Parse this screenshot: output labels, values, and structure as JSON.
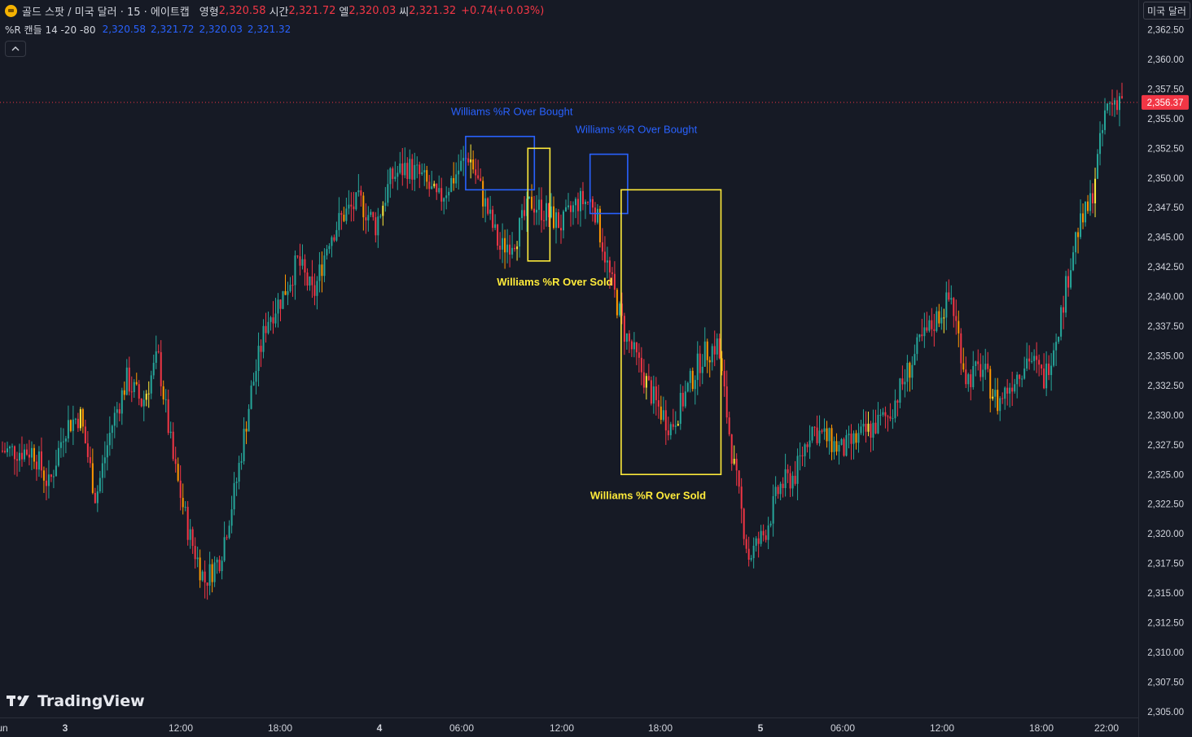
{
  "header": {
    "title": "골드 스팟 / 미국 달러 · 15 · 에이트캡",
    "ohlc": [
      {
        "label": "영형",
        "value": "2,320.58"
      },
      {
        "label": "시간",
        "value": "2,321.72"
      },
      {
        "label": "엘",
        "value": "2,320.03"
      },
      {
        "label": "씨",
        "value": "2,321.32"
      }
    ],
    "change": "+0.74(+0.03%)"
  },
  "indicator": {
    "name": "%R 캔들 14 -20 -80",
    "values": [
      "2,320.58",
      "2,321.72",
      "2,320.03",
      "2,321.32"
    ]
  },
  "currency_button": "미국 달러",
  "collapse_icon": "chevron-up-icon",
  "logo_text": "TradingView",
  "colors": {
    "background": "#161a25",
    "up": "#26a69a",
    "down": "#f23645",
    "orange": "#ff9800",
    "yellow": "#ffeb3b",
    "overbought_box": "#2962ff",
    "oversold_box": "#ffeb3b",
    "axis_text": "#d1d4dc"
  },
  "chart_data": {
    "type": "candlestick",
    "symbol": "골드 스팟 / 미국 달러",
    "interval": "15",
    "ylim": [
      2304,
      2364
    ],
    "y_ticks": [
      "2,362.50",
      "2,360.00",
      "2,357.50",
      "2,355.00",
      "2,352.50",
      "2,350.00",
      "2,347.50",
      "2,345.00",
      "2,342.50",
      "2,340.00",
      "2,337.50",
      "2,335.00",
      "2,332.50",
      "2,330.00",
      "2,327.50",
      "2,325.00",
      "2,322.50",
      "2,320.00",
      "2,317.50",
      "2,315.00",
      "2,312.50",
      "2,310.00",
      "2,307.50",
      "2,305.00"
    ],
    "x_ticks": [
      "Jun",
      "3",
      "12:00",
      "18:00",
      "4",
      "06:00",
      "12:00",
      "18:00",
      "5",
      "06:00",
      "12:00",
      "18:00",
      "22:00"
    ],
    "current_price": {
      "value": 2356.37,
      "label": "2,356.37"
    },
    "close_path": [
      [
        0,
        2327
      ],
      [
        2,
        2327
      ],
      [
        3,
        2324
      ],
      [
        4,
        2329
      ],
      [
        5,
        2330
      ],
      [
        6,
        2323
      ],
      [
        7,
        2329
      ],
      [
        8,
        2333
      ],
      [
        9,
        2331
      ],
      [
        10,
        2335
      ],
      [
        11,
        2326
      ],
      [
        12,
        2320
      ],
      [
        13,
        2316
      ],
      [
        14,
        2318
      ],
      [
        15,
        2324
      ],
      [
        16,
        2332
      ],
      [
        17,
        2338
      ],
      [
        18,
        2340
      ],
      [
        19,
        2343
      ],
      [
        20,
        2340
      ],
      [
        21,
        2345
      ],
      [
        22,
        2347
      ],
      [
        23,
        2348
      ],
      [
        24,
        2346
      ],
      [
        25,
        2350
      ],
      [
        26,
        2351
      ],
      [
        27,
        2350
      ],
      [
        28,
        2348
      ],
      [
        29,
        2350
      ],
      [
        30,
        2352
      ],
      [
        31,
        2348
      ],
      [
        32,
        2344
      ],
      [
        33,
        2345
      ],
      [
        34,
        2348
      ],
      [
        35,
        2347
      ],
      [
        36,
        2346
      ],
      [
        37,
        2348
      ],
      [
        38,
        2348
      ],
      [
        39,
        2342
      ],
      [
        40,
        2337
      ],
      [
        41,
        2334
      ],
      [
        42,
        2331
      ],
      [
        43,
        2329
      ],
      [
        44,
        2332
      ],
      [
        45,
        2335
      ],
      [
        46,
        2336
      ],
      [
        47,
        2326
      ],
      [
        48,
        2318
      ],
      [
        49,
        2320
      ],
      [
        50,
        2324
      ],
      [
        51,
        2325
      ],
      [
        52,
        2329
      ],
      [
        53,
        2328
      ],
      [
        54,
        2327
      ],
      [
        55,
        2328
      ],
      [
        56,
        2329
      ],
      [
        57,
        2330
      ],
      [
        58,
        2333
      ],
      [
        59,
        2336
      ],
      [
        60,
        2338
      ],
      [
        61,
        2340
      ],
      [
        62,
        2333
      ],
      [
        63,
        2334
      ],
      [
        64,
        2331
      ],
      [
        65,
        2333
      ],
      [
        66,
        2335
      ],
      [
        67,
        2333
      ],
      [
        68,
        2338
      ],
      [
        69,
        2345
      ],
      [
        70,
        2348
      ],
      [
        71,
        2356
      ],
      [
        72,
        2357
      ]
    ],
    "annotations": [
      {
        "text": "Williams %R Over Bought",
        "kind": "overbought",
        "from_bar": 30,
        "to_bar": 34,
        "price_high": 2353.5,
        "price_low": 2349
      },
      {
        "text": "Williams %R Over Sold",
        "kind": "oversold",
        "from_bar": 34,
        "to_bar": 35,
        "price_high": 2352.5,
        "price_low": 2343
      },
      {
        "text": "Williams %R Over Bought",
        "kind": "overbought",
        "from_bar": 38,
        "to_bar": 40,
        "price_high": 2352,
        "price_low": 2347
      },
      {
        "text": "Williams %R Over Sold",
        "kind": "oversold",
        "from_bar": 40,
        "to_bar": 46,
        "price_high": 2349,
        "price_low": 2325
      }
    ]
  }
}
